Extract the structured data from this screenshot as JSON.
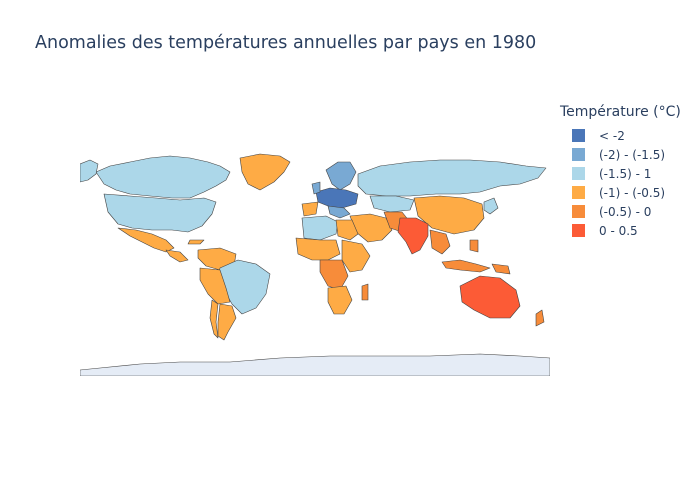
{
  "title": "Anomalies des températures annuelles par pays en 1980",
  "legend": {
    "title": "Température (°C)",
    "items": [
      {
        "label": "< -2",
        "color": "#4a76b8"
      },
      {
        "label": "(-2) - (-1.5)",
        "color": "#79a9d3"
      },
      {
        "label": "(-1.5) - 1",
        "color": "#acd7e9"
      },
      {
        "label": "(-1) - (-0.5)",
        "color": "#feab45"
      },
      {
        "label": "(-0.5) - 0",
        "color": "#f78c3a"
      },
      {
        "label": "0 - 0.5",
        "color": "#fc5b36"
      }
    ]
  },
  "colors": {
    "background": "#ffffff",
    "land_no_data": "#e5ecf6",
    "border": "#444444",
    "text": "#2a3f5f"
  }
}
